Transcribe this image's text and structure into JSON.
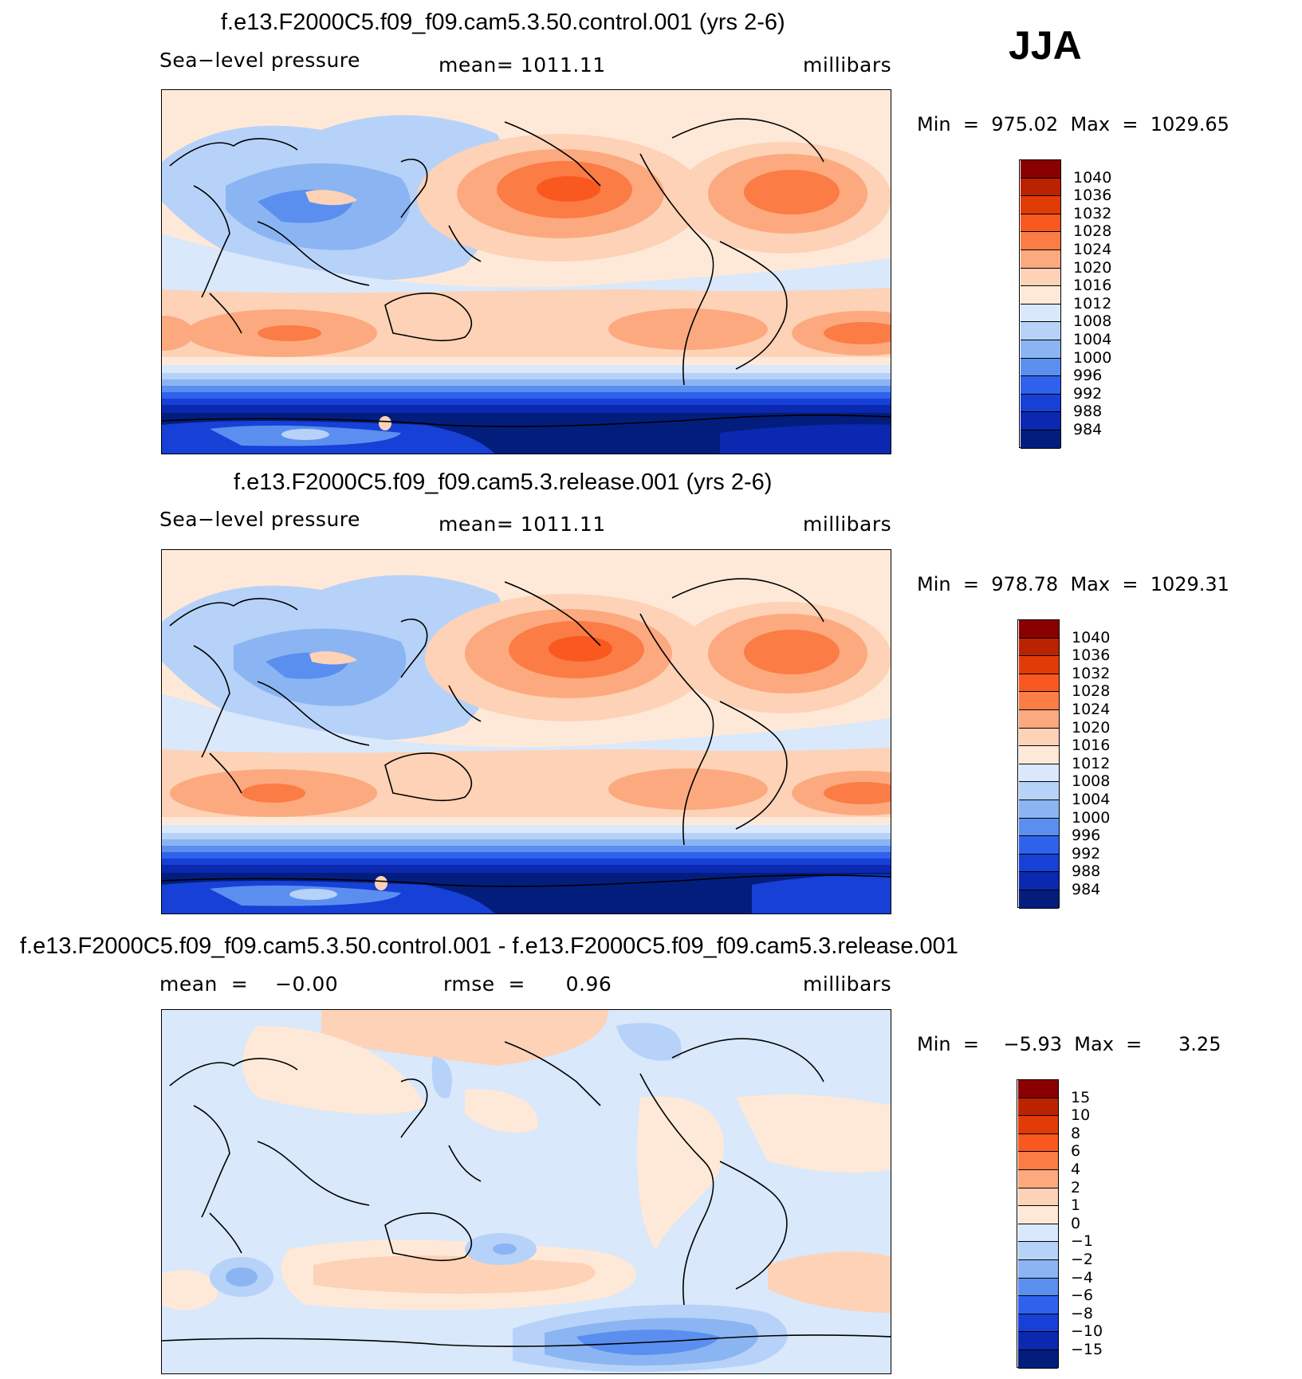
{
  "season": "JJA",
  "panels": [
    {
      "title": "f.e13.F2000C5.f09_f09.cam5.3.50.control.001 (yrs 2-6)",
      "left_label": "Sea−level pressure",
      "center_label": "mean=  1011.11",
      "units": "millibars",
      "minmax": "Min  =  975.02  Max  =  1029.65",
      "colorbar_levels": [
        "1040",
        "1036",
        "1032",
        "1028",
        "1024",
        "1020",
        "1016",
        "1012",
        "1008",
        "1004",
        "1000",
        "996",
        "992",
        "988",
        "984"
      ]
    },
    {
      "title": "f.e13.F2000C5.f09_f09.cam5.3.release.001 (yrs 2-6)",
      "left_label": "Sea−level pressure",
      "center_label": "mean=  1011.11",
      "units": "millibars",
      "minmax": "Min  =  978.78  Max  =  1029.31",
      "colorbar_levels": [
        "1040",
        "1036",
        "1032",
        "1028",
        "1024",
        "1020",
        "1016",
        "1012",
        "1008",
        "1004",
        "1000",
        "996",
        "992",
        "988",
        "984"
      ]
    },
    {
      "title": "f.e13.F2000C5.f09_f09.cam5.3.50.control.001 - f.e13.F2000C5.f09_f09.cam5.3.release.001",
      "left_label": "mean  =    −0.00",
      "center_label": "rmse  =      0.96",
      "units": "millibars",
      "minmax": "Min  =    −5.93  Max  =      3.25",
      "colorbar_levels": [
        "15",
        "10",
        "8",
        "6",
        "4",
        "2",
        "1",
        "0",
        "−1",
        "−2",
        "−4",
        "−6",
        "−8",
        "−10",
        "−15"
      ]
    }
  ],
  "colors": {
    "scale": [
      "#8a0000",
      "#bb2200",
      "#e33b08",
      "#f9581e",
      "#fb7c45",
      "#fca97f",
      "#fdd2b6",
      "#fee9d8",
      "#d9e8fb",
      "#b7d2f8",
      "#8bb5f2",
      "#5a8ff0",
      "#2f62ec",
      "#1740d6",
      "#0b28b0",
      "#031d7c"
    ]
  }
}
